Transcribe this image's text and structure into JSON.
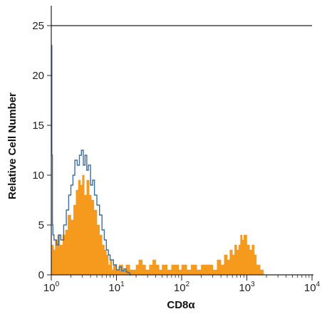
{
  "chart_data": {
    "type": "histogram",
    "xlabel": "CD8α",
    "ylabel": "Relative Cell Number",
    "x_scale": "log",
    "xlim": [
      1,
      10000
    ],
    "ylim": [
      0,
      25
    ],
    "x_ticks": [
      {
        "value": 1,
        "base": "10",
        "exp": "0"
      },
      {
        "value": 10,
        "base": "10",
        "exp": "1"
      },
      {
        "value": 100,
        "base": "10",
        "exp": "2"
      },
      {
        "value": 1000,
        "base": "10",
        "exp": "3"
      },
      {
        "value": 10000,
        "base": "10",
        "exp": "4"
      }
    ],
    "y_ticks": [
      0,
      5,
      10,
      15,
      20,
      25
    ],
    "grid": false,
    "legend": "none",
    "series": [
      {
        "style": "filled",
        "color": "#f59a1c",
        "x": [
          1.0,
          1.08,
          1.15,
          1.25,
          1.35,
          1.5,
          1.65,
          1.8,
          2.0,
          2.2,
          2.4,
          2.6,
          2.8,
          3.0,
          3.2,
          3.5,
          3.8,
          4.1,
          4.5,
          5.0,
          5.5,
          6.0,
          6.5,
          7.0,
          7.5,
          8.0,
          8.5,
          9.0,
          10.0,
          11.0,
          12.5,
          14.0,
          16.0,
          18.0,
          20.0,
          22.0,
          25.0,
          28.0,
          32.0,
          36.0,
          40.0,
          45.0,
          50.0,
          55.0,
          60.0,
          70.0,
          80.0,
          90.0,
          100.0,
          120.0,
          140.0,
          170.0,
          200.0,
          250.0,
          300.0,
          350.0,
          400.0,
          450.0,
          500.0,
          550.0,
          600.0,
          650.0,
          700.0,
          750.0,
          800.0,
          850.0,
          900.0,
          1000.0,
          1100.0,
          1200.0,
          1300.0,
          1400.0,
          1500.0,
          1600.0,
          1700.0,
          1800.0,
          1900.0,
          2000.0
        ],
        "values": [
          3.0,
          2.5,
          3.5,
          4.0,
          3.0,
          4.0,
          4.5,
          6.0,
          5.5,
          7.0,
          8.5,
          9.5,
          9.0,
          10.0,
          8.0,
          9.5,
          8.0,
          7.5,
          6.5,
          5.0,
          4.0,
          3.0,
          2.5,
          2.0,
          1.0,
          1.5,
          0.5,
          1.0,
          0.5,
          1.0,
          0.5,
          1.0,
          0.5,
          0.5,
          1.0,
          1.5,
          1.0,
          0.5,
          1.0,
          1.5,
          1.0,
          0.5,
          1.0,
          1.0,
          0.5,
          1.0,
          1.0,
          0.5,
          1.0,
          0.5,
          1.0,
          0.5,
          1.0,
          1.0,
          0.5,
          1.5,
          1.0,
          2.0,
          1.5,
          2.5,
          2.0,
          3.0,
          2.5,
          3.0,
          4.0,
          3.5,
          4.0,
          3.0,
          2.5,
          3.0,
          2.0,
          1.0,
          1.0,
          0.5,
          0.5,
          0.0,
          0.0,
          0.0
        ]
      },
      {
        "style": "outline",
        "color": "#3a6ea5",
        "x": [
          1.0,
          1.02,
          1.04,
          1.06,
          1.1,
          1.2,
          1.3,
          1.4,
          1.55,
          1.7,
          1.85,
          2.0,
          2.15,
          2.3,
          2.5,
          2.7,
          2.9,
          3.1,
          3.3,
          3.5,
          3.7,
          4.0,
          4.3,
          4.6,
          5.0,
          5.5,
          6.0,
          6.5,
          7.0,
          7.5,
          8.0,
          9.0,
          10.0,
          11.0,
          12.0,
          13.0,
          14.0,
          15.0,
          16.0
        ],
        "values": [
          23.0,
          12.0,
          5.0,
          4.0,
          3.5,
          3.0,
          4.0,
          3.5,
          5.0,
          6.5,
          8.0,
          9.0,
          10.0,
          11.5,
          11.0,
          12.0,
          12.5,
          11.0,
          12.0,
          10.5,
          11.0,
          9.0,
          9.5,
          8.0,
          7.0,
          6.0,
          4.5,
          3.5,
          2.5,
          2.0,
          1.5,
          1.0,
          0.5,
          0.8,
          0.4,
          0.6,
          0.3,
          0.2,
          0.0
        ]
      }
    ]
  }
}
